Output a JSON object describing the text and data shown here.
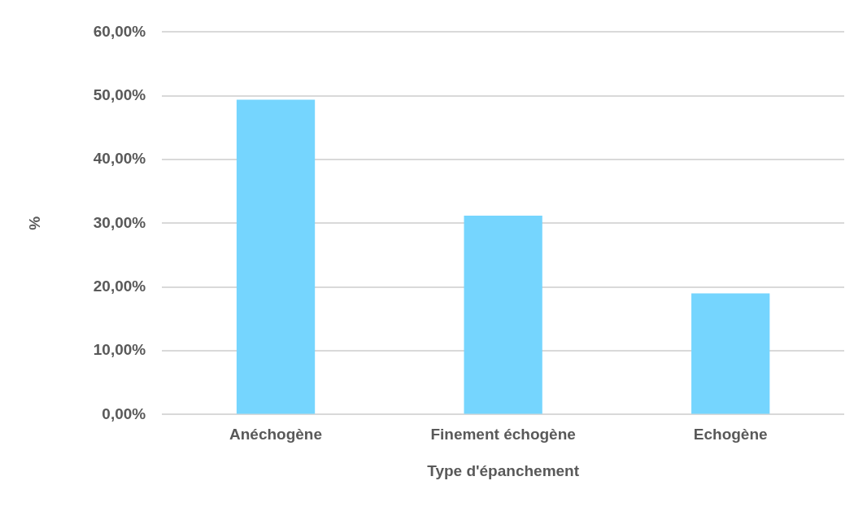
{
  "chart_data": {
    "type": "bar",
    "xlabel": "Type d'épanchement",
    "ylabel": "%",
    "categories": [
      "Anéchogène",
      "Finement échogène",
      "Echogène"
    ],
    "values": [
      49.4,
      31.2,
      19.0
    ],
    "color": "#75d5fe",
    "ylim": [
      0,
      60
    ],
    "yticks": [
      {
        "value": 0,
        "label": "0,00%"
      },
      {
        "value": 10,
        "label": "10,00%"
      },
      {
        "value": 20,
        "label": "20,00%"
      },
      {
        "value": 30,
        "label": "30,00%"
      },
      {
        "value": 40,
        "label": "40,00%"
      },
      {
        "value": 50,
        "label": "50,00%"
      },
      {
        "value": 60,
        "label": "60,00%"
      }
    ],
    "grid": "y",
    "legend": false
  }
}
